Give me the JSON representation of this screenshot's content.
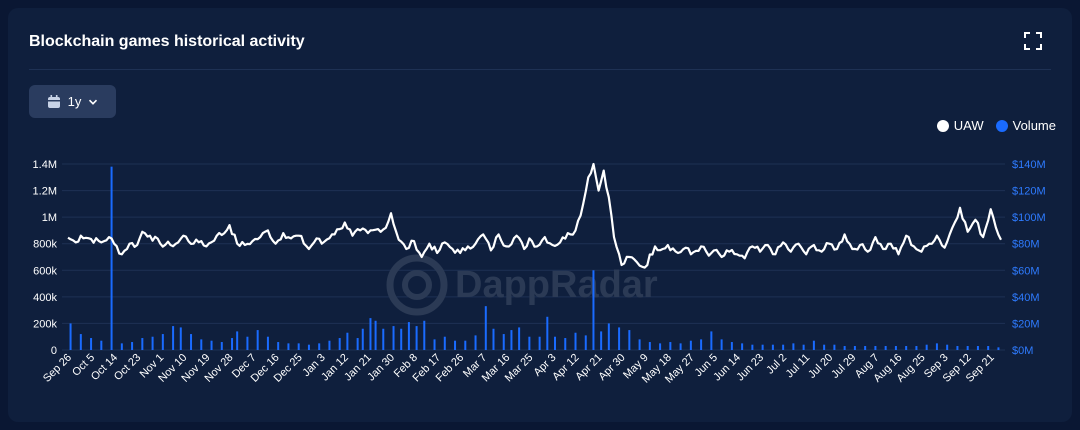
{
  "header": {
    "title": "Blockchain games historical activity"
  },
  "range_selector": {
    "label": "1y"
  },
  "icons": {
    "calendar": "calendar-icon",
    "chevron": "chevron-down-icon",
    "expand": "fullscreen-icon"
  },
  "legend": [
    {
      "label": "UAW",
      "color": "#ffffff"
    },
    {
      "label": "Volume",
      "color": "#1a6bff"
    }
  ],
  "watermark": "DappRadar",
  "chart_data": {
    "type": "bar+line",
    "title": "Blockchain games historical activity",
    "xlabel": "",
    "ylabel": "",
    "x_start": "2021-09-26",
    "x_end": "2022-09-25",
    "x_tick_labels": [
      "Sep 26",
      "Oct 5",
      "Oct 14",
      "Oct 23",
      "Nov 1",
      "Nov 10",
      "Nov 19",
      "Nov 28",
      "Dec 7",
      "Dec 16",
      "Dec 25",
      "Jan 3",
      "Jan 12",
      "Jan 21",
      "Jan 30",
      "Feb 8",
      "Feb 17",
      "Feb 26",
      "Mar 7",
      "Mar 16",
      "Mar 25",
      "Apr 3",
      "Apr 12",
      "Apr 21",
      "Apr 30",
      "May 9",
      "May 18",
      "May 27",
      "Jun 5",
      "Jun 14",
      "Jun 23",
      "Jul 2",
      "Jul 11",
      "Jul 20",
      "Jul 29",
      "Aug 7",
      "Aug 16",
      "Aug 25",
      "Sep 3",
      "Sep 12",
      "Sep 21"
    ],
    "y_left_ticks": [
      "0",
      "200k",
      "400k",
      "600k",
      "800k",
      "1M",
      "1.2M",
      "1.4M"
    ],
    "y_right_ticks": [
      "$0M",
      "$20M",
      "$40M",
      "$60M",
      "$80M",
      "$100M",
      "$120M",
      "$140M"
    ],
    "y_left_range": [
      0,
      1400000
    ],
    "y_right_range": [
      0,
      140000000
    ],
    "grid": true,
    "legend_position": "top-right",
    "series": [
      {
        "name": "UAW",
        "type": "line",
        "axis": "left",
        "color": "#ffffff",
        "points": [
          [
            "2021-09-26",
            845000
          ],
          [
            "2021-09-29",
            810000
          ],
          [
            "2021-10-01",
            860000
          ],
          [
            "2021-10-05",
            835000
          ],
          [
            "2021-10-09",
            810000
          ],
          [
            "2021-10-12",
            850000
          ],
          [
            "2021-10-14",
            800000
          ],
          [
            "2021-10-17",
            720000
          ],
          [
            "2021-10-20",
            800000
          ],
          [
            "2021-10-23",
            790000
          ],
          [
            "2021-10-25",
            890000
          ],
          [
            "2021-10-28",
            860000
          ],
          [
            "2021-11-01",
            800000
          ],
          [
            "2021-11-05",
            790000
          ],
          [
            "2021-11-08",
            810000
          ],
          [
            "2021-11-10",
            860000
          ],
          [
            "2021-11-14",
            800000
          ],
          [
            "2021-11-17",
            820000
          ],
          [
            "2021-11-19",
            780000
          ],
          [
            "2021-11-23",
            860000
          ],
          [
            "2021-11-26",
            880000
          ],
          [
            "2021-11-28",
            940000
          ],
          [
            "2021-12-01",
            800000
          ],
          [
            "2021-12-04",
            790000
          ],
          [
            "2021-12-07",
            820000
          ],
          [
            "2021-12-10",
            850000
          ],
          [
            "2021-12-13",
            900000
          ],
          [
            "2021-12-16",
            800000
          ],
          [
            "2021-12-19",
            880000
          ],
          [
            "2021-12-22",
            840000
          ],
          [
            "2021-12-25",
            860000
          ],
          [
            "2021-12-29",
            760000
          ],
          [
            "2022-01-01",
            840000
          ],
          [
            "2022-01-03",
            800000
          ],
          [
            "2022-01-07",
            870000
          ],
          [
            "2022-01-10",
            910000
          ],
          [
            "2022-01-12",
            960000
          ],
          [
            "2022-01-15",
            860000
          ],
          [
            "2022-01-18",
            900000
          ],
          [
            "2022-01-21",
            880000
          ],
          [
            "2022-01-25",
            910000
          ],
          [
            "2022-01-28",
            920000
          ],
          [
            "2022-01-30",
            1030000
          ],
          [
            "2022-02-02",
            830000
          ],
          [
            "2022-02-05",
            760000
          ],
          [
            "2022-02-08",
            820000
          ],
          [
            "2022-02-11",
            700000
          ],
          [
            "2022-02-14",
            800000
          ],
          [
            "2022-02-17",
            730000
          ],
          [
            "2022-02-20",
            810000
          ],
          [
            "2022-02-23",
            760000
          ],
          [
            "2022-02-26",
            730000
          ],
          [
            "2022-03-01",
            780000
          ],
          [
            "2022-03-04",
            800000
          ],
          [
            "2022-03-07",
            870000
          ],
          [
            "2022-03-10",
            750000
          ],
          [
            "2022-03-13",
            870000
          ],
          [
            "2022-03-16",
            780000
          ],
          [
            "2022-03-20",
            860000
          ],
          [
            "2022-03-23",
            760000
          ],
          [
            "2022-03-25",
            840000
          ],
          [
            "2022-03-28",
            780000
          ],
          [
            "2022-03-31",
            850000
          ],
          [
            "2022-04-03",
            790000
          ],
          [
            "2022-04-06",
            810000
          ],
          [
            "2022-04-09",
            880000
          ],
          [
            "2022-04-12",
            900000
          ],
          [
            "2022-04-15",
            1100000
          ],
          [
            "2022-04-17",
            1300000
          ],
          [
            "2022-04-19",
            1400000
          ],
          [
            "2022-04-21",
            1200000
          ],
          [
            "2022-04-23",
            1350000
          ],
          [
            "2022-04-25",
            1150000
          ],
          [
            "2022-04-27",
            850000
          ],
          [
            "2022-04-30",
            640000
          ],
          [
            "2022-05-03",
            700000
          ],
          [
            "2022-05-06",
            660000
          ],
          [
            "2022-05-09",
            620000
          ],
          [
            "2022-05-13",
            780000
          ],
          [
            "2022-05-16",
            760000
          ],
          [
            "2022-05-18",
            790000
          ],
          [
            "2022-05-22",
            730000
          ],
          [
            "2022-05-25",
            770000
          ],
          [
            "2022-05-27",
            720000
          ],
          [
            "2022-05-31",
            780000
          ],
          [
            "2022-06-03",
            710000
          ],
          [
            "2022-06-05",
            750000
          ],
          [
            "2022-06-08",
            700000
          ],
          [
            "2022-06-11",
            740000
          ],
          [
            "2022-06-14",
            720000
          ],
          [
            "2022-06-17",
            690000
          ],
          [
            "2022-06-20",
            780000
          ],
          [
            "2022-06-23",
            740000
          ],
          [
            "2022-06-26",
            790000
          ],
          [
            "2022-06-29",
            720000
          ],
          [
            "2022-07-02",
            810000
          ],
          [
            "2022-07-05",
            740000
          ],
          [
            "2022-07-08",
            800000
          ],
          [
            "2022-07-11",
            720000
          ],
          [
            "2022-07-14",
            790000
          ],
          [
            "2022-07-17",
            740000
          ],
          [
            "2022-07-20",
            800000
          ],
          [
            "2022-07-23",
            760000
          ],
          [
            "2022-07-26",
            870000
          ],
          [
            "2022-07-29",
            760000
          ],
          [
            "2022-08-01",
            790000
          ],
          [
            "2022-08-04",
            740000
          ],
          [
            "2022-08-07",
            850000
          ],
          [
            "2022-08-10",
            760000
          ],
          [
            "2022-08-13",
            800000
          ],
          [
            "2022-08-16",
            720000
          ],
          [
            "2022-08-19",
            860000
          ],
          [
            "2022-08-22",
            780000
          ],
          [
            "2022-08-25",
            740000
          ],
          [
            "2022-08-28",
            800000
          ],
          [
            "2022-08-31",
            860000
          ],
          [
            "2022-09-03",
            770000
          ],
          [
            "2022-09-06",
            920000
          ],
          [
            "2022-09-09",
            1070000
          ],
          [
            "2022-09-12",
            890000
          ],
          [
            "2022-09-15",
            980000
          ],
          [
            "2022-09-18",
            850000
          ],
          [
            "2022-09-21",
            1060000
          ],
          [
            "2022-09-25",
            830000
          ]
        ]
      },
      {
        "name": "Volume",
        "type": "bar",
        "axis": "right",
        "color": "#1a6bff",
        "bars": [
          [
            "2021-09-27",
            20000000
          ],
          [
            "2021-10-01",
            12000000
          ],
          [
            "2021-10-05",
            9000000
          ],
          [
            "2021-10-09",
            7000000
          ],
          [
            "2021-10-13",
            138000000
          ],
          [
            "2021-10-17",
            5000000
          ],
          [
            "2021-10-21",
            6000000
          ],
          [
            "2021-10-25",
            9000000
          ],
          [
            "2021-10-29",
            10000000
          ],
          [
            "2021-11-02",
            12000000
          ],
          [
            "2021-11-06",
            18000000
          ],
          [
            "2021-11-09",
            17000000
          ],
          [
            "2021-11-13",
            12000000
          ],
          [
            "2021-11-17",
            8000000
          ],
          [
            "2021-11-21",
            7000000
          ],
          [
            "2021-11-25",
            6000000
          ],
          [
            "2021-11-29",
            9000000
          ],
          [
            "2021-12-01",
            14000000
          ],
          [
            "2021-12-05",
            10000000
          ],
          [
            "2021-12-09",
            15000000
          ],
          [
            "2021-12-13",
            10000000
          ],
          [
            "2021-12-17",
            6000000
          ],
          [
            "2021-12-21",
            5000000
          ],
          [
            "2021-12-25",
            5000000
          ],
          [
            "2021-12-29",
            4000000
          ],
          [
            "2022-01-02",
            5000000
          ],
          [
            "2022-01-06",
            7000000
          ],
          [
            "2022-01-10",
            9000000
          ],
          [
            "2022-01-13",
            13000000
          ],
          [
            "2022-01-17",
            9000000
          ],
          [
            "2022-01-19",
            16000000
          ],
          [
            "2022-01-22",
            24000000
          ],
          [
            "2022-01-24",
            22000000
          ],
          [
            "2022-01-27",
            16000000
          ],
          [
            "2022-01-31",
            18000000
          ],
          [
            "2022-02-03",
            16000000
          ],
          [
            "2022-02-06",
            21000000
          ],
          [
            "2022-02-09",
            18000000
          ],
          [
            "2022-02-12",
            22000000
          ],
          [
            "2022-02-16",
            8000000
          ],
          [
            "2022-02-20",
            10000000
          ],
          [
            "2022-02-24",
            7000000
          ],
          [
            "2022-02-28",
            7000000
          ],
          [
            "2022-03-04",
            11000000
          ],
          [
            "2022-03-08",
            33000000
          ],
          [
            "2022-03-11",
            16000000
          ],
          [
            "2022-03-15",
            12000000
          ],
          [
            "2022-03-18",
            15000000
          ],
          [
            "2022-03-21",
            17000000
          ],
          [
            "2022-03-25",
            10000000
          ],
          [
            "2022-03-29",
            10000000
          ],
          [
            "2022-04-01",
            25000000
          ],
          [
            "2022-04-04",
            10000000
          ],
          [
            "2022-04-08",
            9000000
          ],
          [
            "2022-04-12",
            13000000
          ],
          [
            "2022-04-16",
            11000000
          ],
          [
            "2022-04-19",
            60000000
          ],
          [
            "2022-04-22",
            14000000
          ],
          [
            "2022-04-25",
            20000000
          ],
          [
            "2022-04-29",
            17000000
          ],
          [
            "2022-05-03",
            15000000
          ],
          [
            "2022-05-07",
            8000000
          ],
          [
            "2022-05-11",
            6000000
          ],
          [
            "2022-05-15",
            5000000
          ],
          [
            "2022-05-19",
            6000000
          ],
          [
            "2022-05-23",
            5000000
          ],
          [
            "2022-05-27",
            7000000
          ],
          [
            "2022-05-31",
            8000000
          ],
          [
            "2022-06-04",
            14000000
          ],
          [
            "2022-06-08",
            8000000
          ],
          [
            "2022-06-12",
            6000000
          ],
          [
            "2022-06-16",
            5000000
          ],
          [
            "2022-06-20",
            4000000
          ],
          [
            "2022-06-24",
            4000000
          ],
          [
            "2022-06-28",
            4000000
          ],
          [
            "2022-07-02",
            4000000
          ],
          [
            "2022-07-06",
            5000000
          ],
          [
            "2022-07-10",
            4000000
          ],
          [
            "2022-07-14",
            7000000
          ],
          [
            "2022-07-18",
            4000000
          ],
          [
            "2022-07-22",
            4000000
          ],
          [
            "2022-07-26",
            3000000
          ],
          [
            "2022-07-30",
            3000000
          ],
          [
            "2022-08-03",
            3000000
          ],
          [
            "2022-08-07",
            3000000
          ],
          [
            "2022-08-11",
            3000000
          ],
          [
            "2022-08-15",
            3000000
          ],
          [
            "2022-08-19",
            3000000
          ],
          [
            "2022-08-23",
            3000000
          ],
          [
            "2022-08-27",
            4000000
          ],
          [
            "2022-08-31",
            5000000
          ],
          [
            "2022-09-04",
            4000000
          ],
          [
            "2022-09-08",
            3000000
          ],
          [
            "2022-09-12",
            3000000
          ],
          [
            "2022-09-16",
            3000000
          ],
          [
            "2022-09-20",
            3000000
          ],
          [
            "2022-09-24",
            2000000
          ]
        ]
      }
    ]
  }
}
